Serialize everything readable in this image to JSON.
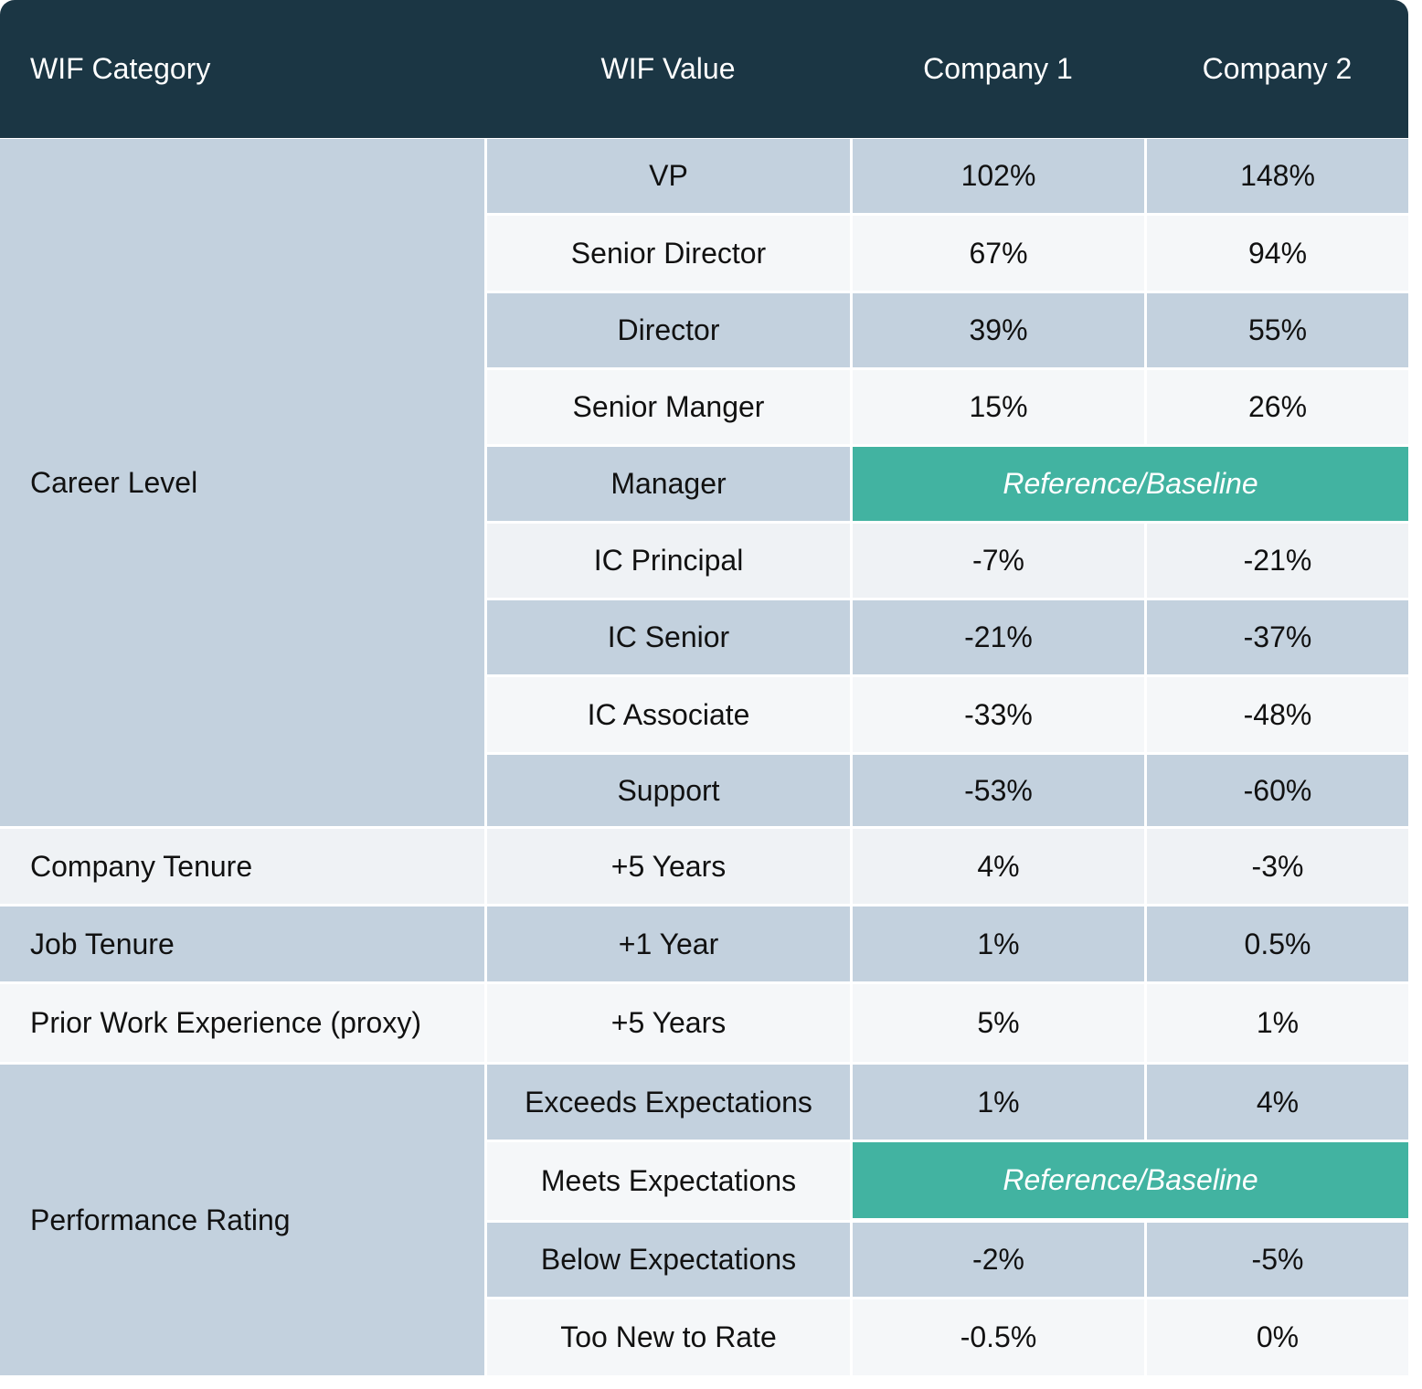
{
  "header": {
    "category": "WIF Category",
    "value": "WIF Value",
    "company1": "Company 1",
    "company2": "Company 2"
  },
  "groups": [
    {
      "category": "Career Level",
      "rows": [
        {
          "value": "VP",
          "company1": "102%",
          "company2": "148%"
        },
        {
          "value": "Senior Director",
          "company1": "67%",
          "company2": "94%"
        },
        {
          "value": "Director",
          "company1": "39%",
          "company2": "55%"
        },
        {
          "value": "Senior Manger",
          "company1": "15%",
          "company2": "26%"
        },
        {
          "value": "Manager",
          "baseline": "Reference/Baseline"
        },
        {
          "value": "IC Principal",
          "company1": "-7%",
          "company2": "-21%"
        },
        {
          "value": "IC Senior",
          "company1": "-21%",
          "company2": "-37%"
        },
        {
          "value": "IC Associate",
          "company1": "-33%",
          "company2": "-48%"
        },
        {
          "value": "Support",
          "company1": "-53%",
          "company2": "-60%"
        }
      ]
    },
    {
      "category": "Company Tenure",
      "rows": [
        {
          "value": "+5 Years",
          "company1": "4%",
          "company2": "-3%"
        }
      ]
    },
    {
      "category": "Job Tenure",
      "rows": [
        {
          "value": "+1 Year",
          "company1": "1%",
          "company2": "0.5%"
        }
      ]
    },
    {
      "category": "Prior Work Experience (proxy)",
      "rows": [
        {
          "value": "+5 Years",
          "company1": "5%",
          "company2": "1%"
        }
      ]
    },
    {
      "category": "Performance Rating",
      "rows": [
        {
          "value": "Exceeds Expectations",
          "company1": "1%",
          "company2": "4%"
        },
        {
          "value": "Meets Expectations",
          "baseline": "Reference/Baseline"
        },
        {
          "value": "Below Expectations",
          "company1": "-2%",
          "company2": "-5%"
        },
        {
          "value": "Too New to Rate",
          "company1": "-0.5%",
          "company2": "0%"
        }
      ]
    }
  ]
}
